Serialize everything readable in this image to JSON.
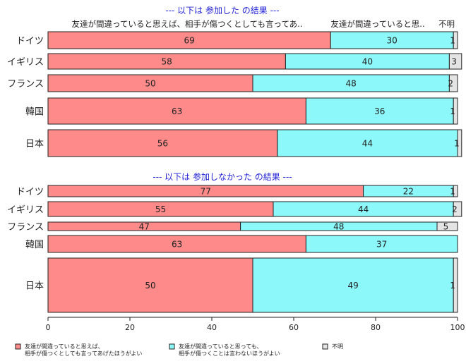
{
  "chart_data": {
    "type": "bar",
    "orientation": "horizontal",
    "stacked": true,
    "xlim": [
      0,
      100
    ],
    "x_ticks": [
      "0",
      "20",
      "40",
      "60",
      "80",
      "100"
    ],
    "column_headers": [
      "友達が間違っていると思えば、相手が傷つくとしても言ってあ..",
      "友達が間違っていると思..",
      "不明"
    ],
    "legend": [
      {
        "line1": "友達が間違っていると思えば、",
        "line2": "相手が傷つくとしても言ってあげたほうがよい",
        "color": "#ff8a8a"
      },
      {
        "line1": "友達が間違っていると思っても、",
        "line2": "相手が傷つくことは言わないほうがよい",
        "color": "#8cf8fa"
      },
      {
        "line1": "不明",
        "line2": "",
        "color": "#e4e4e4"
      }
    ],
    "panels": [
      {
        "title": "--- 以下は 参加した の結果 ---",
        "rows": [
          {
            "category": "ドイツ",
            "values": [
              69,
              30,
              1
            ],
            "labels": [
              "69",
              "30",
              "1"
            ]
          },
          {
            "category": "イギリス",
            "values": [
              58,
              40,
              3
            ],
            "labels": [
              "58",
              "40",
              "3"
            ]
          },
          {
            "category": "フランス",
            "values": [
              50,
              48,
              2
            ],
            "labels": [
              "50",
              "48",
              "2"
            ]
          },
          {
            "category": "韓国",
            "values": [
              63,
              36,
              1
            ],
            "labels": [
              "63",
              "36",
              "1"
            ]
          },
          {
            "category": "日本",
            "values": [
              56,
              44,
              1
            ],
            "labels": [
              "56",
              "44",
              "1"
            ]
          }
        ]
      },
      {
        "title": "--- 以下は 参加しなかった の結果 ---",
        "rows": [
          {
            "category": "ドイツ",
            "values": [
              77,
              22,
              1
            ],
            "labels": [
              "77",
              "22",
              "1"
            ]
          },
          {
            "category": "イギリス",
            "values": [
              55,
              44,
              2
            ],
            "labels": [
              "55",
              "44",
              "2"
            ]
          },
          {
            "category": "フランス",
            "values": [
              47,
              48,
              5
            ],
            "labels": [
              "47",
              "48",
              "5"
            ]
          },
          {
            "category": "韓国",
            "values": [
              63,
              37,
              0
            ],
            "labels": [
              "63",
              "37",
              ""
            ]
          },
          {
            "category": "日本",
            "values": [
              50,
              49,
              1
            ],
            "labels": [
              "50",
              "49",
              "1"
            ]
          }
        ]
      }
    ]
  }
}
